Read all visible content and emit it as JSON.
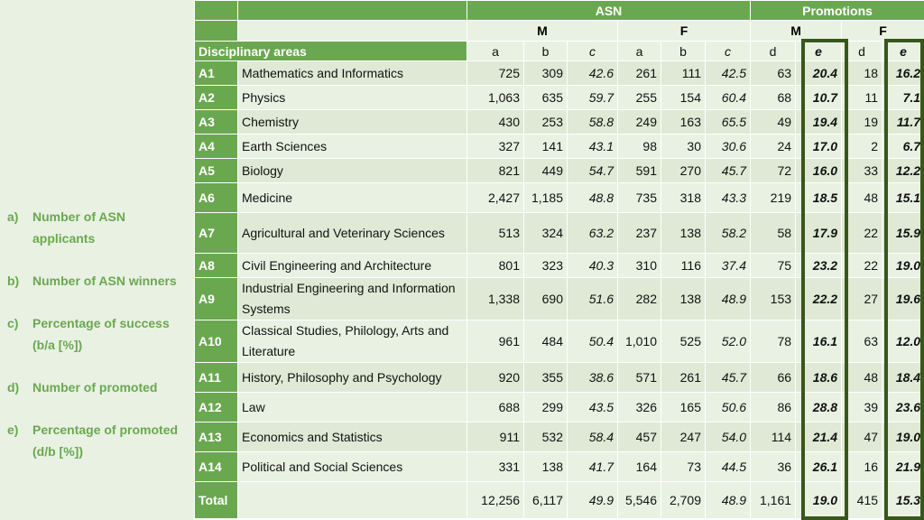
{
  "legend": [
    {
      "letter": "a)",
      "text": "Number of ASN applicants"
    },
    {
      "letter": "b)",
      "text": "Number of ASN winners"
    },
    {
      "letter": "c)",
      "text": "Percentage of success (b/a [%])"
    },
    {
      "letter": "d)",
      "text": "Number of promoted"
    },
    {
      "letter": "e)",
      "text": "Percentage of promoted (d/b [%])"
    }
  ],
  "header": {
    "asn": "ASN",
    "promotions": "Promotions",
    "m": "M",
    "f": "F",
    "disciplinary_areas": "Disciplinary areas",
    "cols": [
      "a",
      "b",
      "c",
      "a",
      "b",
      "c",
      "d",
      "e",
      "d",
      "e"
    ]
  },
  "rows": [
    {
      "code": "A1",
      "area": "Mathematics and Informatics",
      "v": [
        "725",
        "309",
        "42.6",
        "261",
        "111",
        "42.5",
        "63",
        "20.4",
        "18",
        "16.2"
      ]
    },
    {
      "code": "A2",
      "area": "Physics",
      "v": [
        "1,063",
        "635",
        "59.7",
        "255",
        "154",
        "60.4",
        "68",
        "10.7",
        "11",
        "7.1"
      ]
    },
    {
      "code": "A3",
      "area": "Chemistry",
      "v": [
        "430",
        "253",
        "58.8",
        "249",
        "163",
        "65.5",
        "49",
        "19.4",
        "19",
        "11.7"
      ]
    },
    {
      "code": "A4",
      "area": "Earth Sciences",
      "v": [
        "327",
        "141",
        "43.1",
        "98",
        "30",
        "30.6",
        "24",
        "17.0",
        "2",
        "6.7"
      ]
    },
    {
      "code": "A5",
      "area": "Biology",
      "v": [
        "821",
        "449",
        "54.7",
        "591",
        "270",
        "45.7",
        "72",
        "16.0",
        "33",
        "12.2"
      ]
    },
    {
      "code": "A6",
      "area": "Medicine",
      "v": [
        "2,427",
        "1,185",
        "48.8",
        "735",
        "318",
        "43.3",
        "219",
        "18.5",
        "48",
        "15.1"
      ]
    },
    {
      "code": "A7",
      "area": "Agricultural and Veterinary Sciences",
      "v": [
        "513",
        "324",
        "63.2",
        "237",
        "138",
        "58.2",
        "58",
        "17.9",
        "22",
        "15.9"
      ]
    },
    {
      "code": "A8",
      "area": "Civil Engineering and Architecture",
      "v": [
        "801",
        "323",
        "40.3",
        "310",
        "116",
        "37.4",
        "75",
        "23.2",
        "22",
        "19.0"
      ]
    },
    {
      "code": "A9",
      "area": "Industrial Engineering and Information Systems",
      "v": [
        "1,338",
        "690",
        "51.6",
        "282",
        "138",
        "48.9",
        "153",
        "22.2",
        "27",
        "19.6"
      ]
    },
    {
      "code": "A10",
      "area": "Classical Studies, Philology, Arts and Literature",
      "v": [
        "961",
        "484",
        "50.4",
        "1,010",
        "525",
        "52.0",
        "78",
        "16.1",
        "63",
        "12.0"
      ]
    },
    {
      "code": "A11",
      "area": "History, Philosophy and Psychology",
      "v": [
        "920",
        "355",
        "38.6",
        "571",
        "261",
        "45.7",
        "66",
        "18.6",
        "48",
        "18.4"
      ]
    },
    {
      "code": "A12",
      "area": "Law",
      "v": [
        "688",
        "299",
        "43.5",
        "326",
        "165",
        "50.6",
        "86",
        "28.8",
        "39",
        "23.6"
      ]
    },
    {
      "code": "A13",
      "area": "Economics and Statistics",
      "v": [
        "911",
        "532",
        "58.4",
        "457",
        "247",
        "54.0",
        "114",
        "21.4",
        "47",
        "19.0"
      ]
    },
    {
      "code": "A14",
      "area": "Political and Social Sciences",
      "v": [
        "331",
        "138",
        "41.7",
        "164",
        "73",
        "44.5",
        "36",
        "26.1",
        "16",
        "21.9"
      ]
    }
  ],
  "total": {
    "code": "Total",
    "v": [
      "12,256",
      "6,117",
      "49.9",
      "5,546",
      "2,709",
      "48.9",
      "1,161",
      "19.0",
      "415",
      "15.3"
    ]
  }
}
